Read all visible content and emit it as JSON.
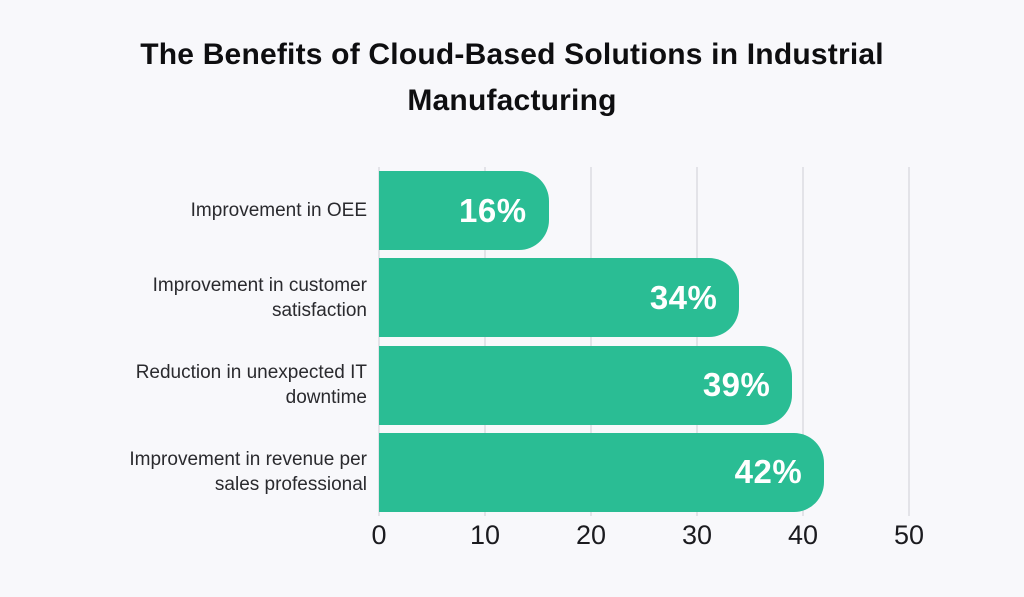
{
  "title": {
    "text": "The Benefits of Cloud-Based Solutions in Industrial Manufacturing",
    "lines": [
      "The Benefits of Cloud-Based Solutions in Industrial",
      "Manufacturing"
    ]
  },
  "chart_data": {
    "type": "bar",
    "orientation": "horizontal",
    "title": "The Benefits of Cloud-Based Solutions in Industrial Manufacturing",
    "categories": [
      "Improvement in OEE",
      "Improvement in customer satisfaction",
      "Reduction in unexpected IT downtime",
      "Improvement in revenue per sales professional"
    ],
    "values": [
      16,
      34,
      39,
      42
    ],
    "value_labels": [
      "16%",
      "34%",
      "39%",
      "42%"
    ],
    "xlabel": "",
    "ylabel": "",
    "xlim": [
      0,
      50
    ],
    "x_ticks": [
      "0",
      "10",
      "20",
      "30",
      "40",
      "50"
    ],
    "grid": "vertical-only",
    "legend": "none",
    "colors": {
      "bar": "#2abd94",
      "value_label": "#ffffff",
      "background": "#f8f8fb",
      "gridline": "#e3e3e8",
      "title_text": "#0e0e10",
      "category_text": "#2a2a2e",
      "tick_text": "#1b1b1f"
    }
  }
}
